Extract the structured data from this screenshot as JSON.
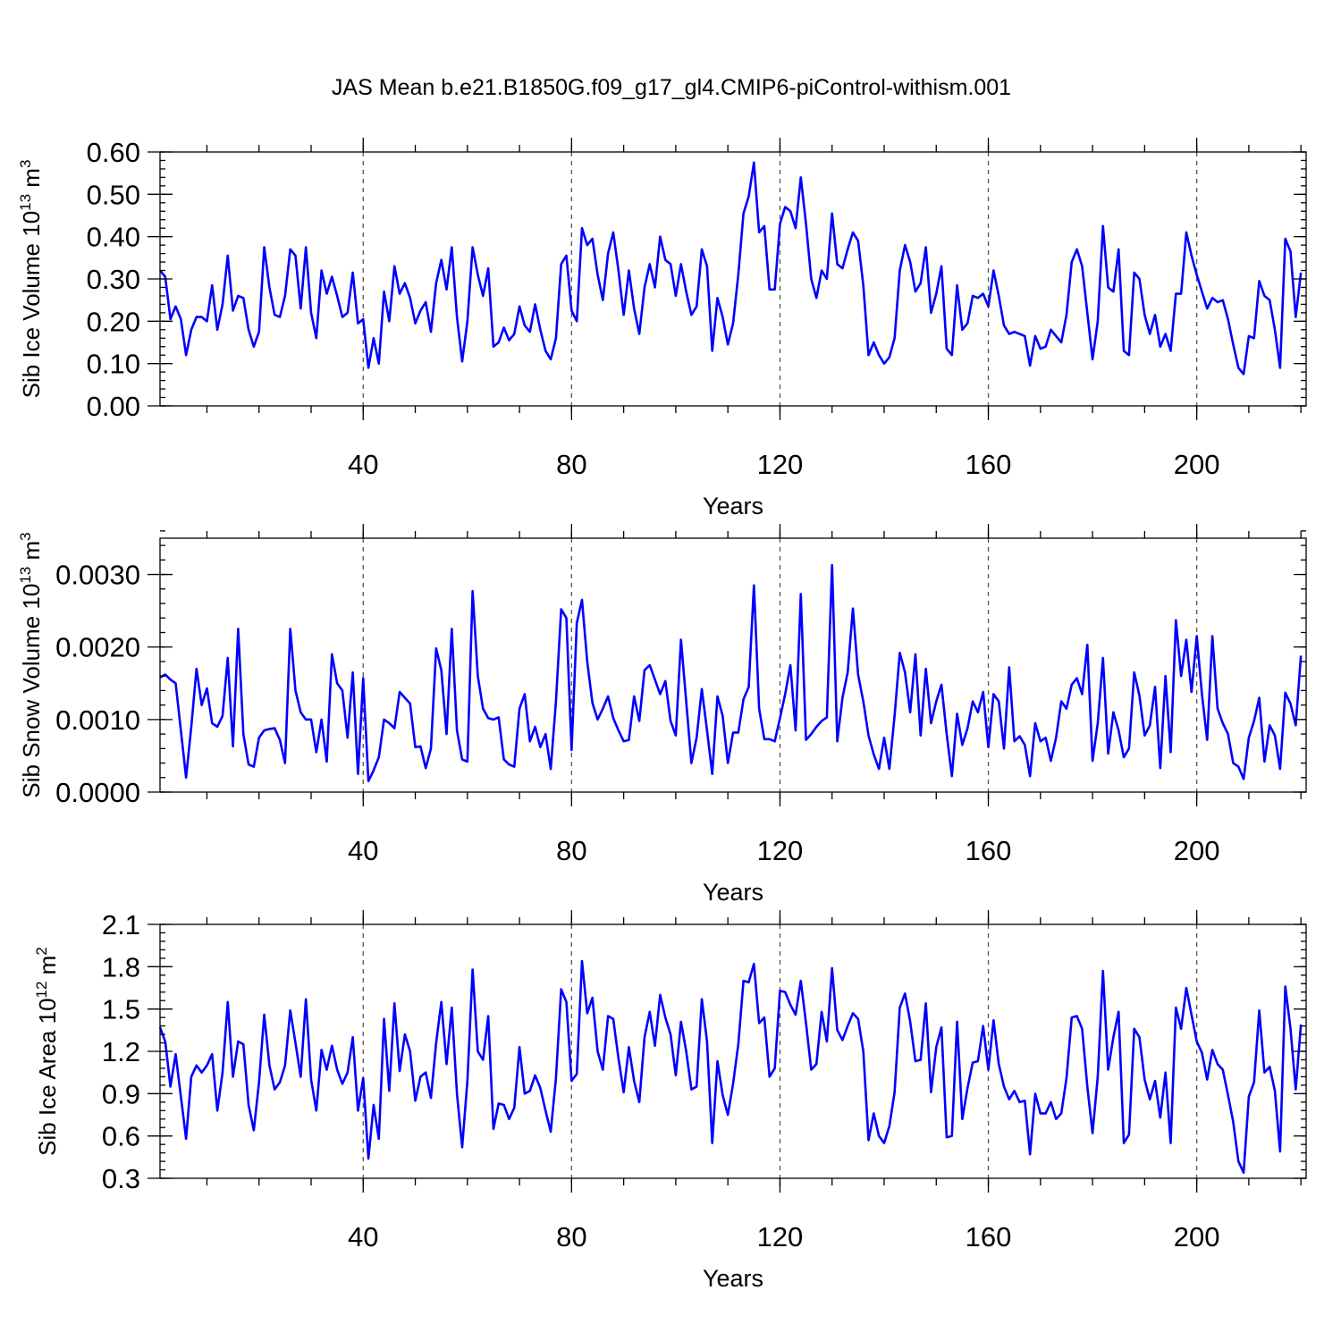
{
  "title": "JAS Mean b.e21.B1850G.f09_g17_gl4.CMIP6-piControl-withism.001",
  "colors": {
    "series": "#0000ff",
    "refline": "#555555",
    "axis": "#000000"
  },
  "chart_data": [
    {
      "type": "line",
      "ylabel_base": "Sib Ice Volume 10",
      "ylabel_exp": "13",
      "ylabel_unit": " m",
      "ylabel_unit_exp": "3",
      "xlabel": "Years",
      "xlim": [
        1,
        221
      ],
      "ylim": [
        0.0,
        0.6
      ],
      "xticks": [
        40,
        80,
        120,
        160,
        200
      ],
      "xtick_labels": [
        "40",
        "80",
        "120",
        "160",
        "200"
      ],
      "yticks": [
        0.0,
        0.1,
        0.2,
        0.3,
        0.4,
        0.5,
        0.6
      ],
      "ytick_labels": [
        "0.00",
        "0.10",
        "0.20",
        "0.30",
        "0.40",
        "0.50",
        "0.60"
      ],
      "yminor_step": 0.02,
      "reference_x": [
        40,
        80,
        120,
        160,
        200
      ],
      "x_start": 1,
      "values": [
        0.32,
        0.305,
        0.205,
        0.235,
        0.205,
        0.12,
        0.18,
        0.21,
        0.21,
        0.2,
        0.285,
        0.18,
        0.24,
        0.355,
        0.225,
        0.26,
        0.255,
        0.18,
        0.14,
        0.175,
        0.375,
        0.28,
        0.215,
        0.21,
        0.26,
        0.37,
        0.355,
        0.23,
        0.375,
        0.22,
        0.16,
        0.32,
        0.265,
        0.305,
        0.26,
        0.21,
        0.22,
        0.315,
        0.195,
        0.205,
        0.09,
        0.16,
        0.1,
        0.27,
        0.2,
        0.33,
        0.265,
        0.29,
        0.255,
        0.195,
        0.225,
        0.245,
        0.175,
        0.29,
        0.345,
        0.275,
        0.375,
        0.21,
        0.105,
        0.2,
        0.375,
        0.31,
        0.26,
        0.325,
        0.14,
        0.15,
        0.185,
        0.155,
        0.17,
        0.235,
        0.19,
        0.175,
        0.24,
        0.18,
        0.13,
        0.11,
        0.16,
        0.335,
        0.355,
        0.225,
        0.2,
        0.42,
        0.38,
        0.395,
        0.31,
        0.25,
        0.36,
        0.41,
        0.32,
        0.215,
        0.32,
        0.23,
        0.17,
        0.28,
        0.335,
        0.28,
        0.4,
        0.345,
        0.335,
        0.26,
        0.335,
        0.27,
        0.215,
        0.235,
        0.37,
        0.33,
        0.13,
        0.255,
        0.21,
        0.145,
        0.195,
        0.31,
        0.455,
        0.495,
        0.575,
        0.41,
        0.425,
        0.275,
        0.275,
        0.43,
        0.47,
        0.46,
        0.42,
        0.54,
        0.43,
        0.3,
        0.255,
        0.32,
        0.3,
        0.455,
        0.335,
        0.325,
        0.37,
        0.41,
        0.39,
        0.285,
        0.12,
        0.15,
        0.12,
        0.1,
        0.115,
        0.16,
        0.32,
        0.38,
        0.34,
        0.27,
        0.29,
        0.375,
        0.22,
        0.265,
        0.33,
        0.135,
        0.12,
        0.285,
        0.18,
        0.195,
        0.26,
        0.255,
        0.265,
        0.235,
        0.32,
        0.26,
        0.19,
        0.17,
        0.175,
        0.17,
        0.165,
        0.095,
        0.165,
        0.135,
        0.14,
        0.18,
        0.165,
        0.15,
        0.215,
        0.34,
        0.37,
        0.33,
        0.22,
        0.11,
        0.2,
        0.425,
        0.28,
        0.27,
        0.37,
        0.13,
        0.12,
        0.315,
        0.3,
        0.215,
        0.17,
        0.215,
        0.14,
        0.17,
        0.13,
        0.265,
        0.265,
        0.41,
        0.355,
        0.31,
        0.27,
        0.23,
        0.255,
        0.245,
        0.25,
        0.205,
        0.145,
        0.09,
        0.075,
        0.165,
        0.16,
        0.295,
        0.26,
        0.25,
        0.18,
        0.09,
        0.395,
        0.365,
        0.21,
        0.315
      ]
    },
    {
      "type": "line",
      "ylabel_base": "Sib Snow Volume 10",
      "ylabel_exp": "13",
      "ylabel_unit": " m",
      "ylabel_unit_exp": "3",
      "xlabel": "Years",
      "xlim": [
        1,
        221
      ],
      "ylim": [
        0.0,
        0.0035
      ],
      "xticks": [
        40,
        80,
        120,
        160,
        200
      ],
      "xtick_labels": [
        "40",
        "80",
        "120",
        "160",
        "200"
      ],
      "yticks": [
        0.0,
        0.001,
        0.002,
        0.003
      ],
      "ytick_labels": [
        "0.0000",
        "0.0010",
        "0.0020",
        "0.0030"
      ],
      "yminor_step": 0.0002,
      "reference_x": [
        40,
        80,
        120,
        160,
        200
      ],
      "x_start": 1,
      "values": [
        0.00158,
        0.00162,
        0.00155,
        0.0015,
        0.00085,
        0.0002,
        0.0009,
        0.0017,
        0.0012,
        0.00143,
        0.00095,
        0.0009,
        0.00105,
        0.00185,
        0.00063,
        0.00225,
        0.0008,
        0.00038,
        0.00035,
        0.00075,
        0.00085,
        0.00087,
        0.00088,
        0.00072,
        0.0004,
        0.00225,
        0.0014,
        0.0011,
        0.001,
        0.001,
        0.00055,
        0.001,
        0.00042,
        0.0019,
        0.0015,
        0.0014,
        0.00075,
        0.00165,
        0.00025,
        0.00157,
        0.00015,
        0.0003,
        0.00048,
        0.001,
        0.00095,
        0.00088,
        0.00138,
        0.0013,
        0.00122,
        0.00062,
        0.00063,
        0.00033,
        0.0006,
        0.00198,
        0.00168,
        0.0008,
        0.00225,
        0.00085,
        0.00045,
        0.00042,
        0.00277,
        0.0016,
        0.00115,
        0.00102,
        0.001,
        0.00103,
        0.00045,
        0.00038,
        0.00035,
        0.00115,
        0.00135,
        0.0007,
        0.0009,
        0.00062,
        0.0008,
        0.00032,
        0.00125,
        0.00252,
        0.0024,
        0.00058,
        0.00233,
        0.00265,
        0.0018,
        0.00123,
        0.001,
        0.00115,
        0.00132,
        0.00102,
        0.00085,
        0.0007,
        0.00072,
        0.00132,
        0.00098,
        0.00168,
        0.00175,
        0.00155,
        0.00135,
        0.00153,
        0.00098,
        0.00078,
        0.0021,
        0.00125,
        0.0004,
        0.00075,
        0.00142,
        0.00085,
        0.00025,
        0.00132,
        0.00105,
        0.0004,
        0.00082,
        0.00082,
        0.00128,
        0.00145,
        0.00285,
        0.00115,
        0.00073,
        0.00073,
        0.0007,
        0.00102,
        0.00135,
        0.00175,
        0.00085,
        0.00273,
        0.00072,
        0.0008,
        0.0009,
        0.00098,
        0.00103,
        0.00313,
        0.0007,
        0.0013,
        0.00165,
        0.00253,
        0.00162,
        0.00125,
        0.00078,
        0.00052,
        0.00032,
        0.00075,
        0.00032,
        0.00105,
        0.00192,
        0.00165,
        0.0011,
        0.0019,
        0.00078,
        0.0017,
        0.00095,
        0.00125,
        0.00148,
        0.0008,
        0.00022,
        0.00108,
        0.00065,
        0.00088,
        0.00125,
        0.0011,
        0.00138,
        0.00062,
        0.00135,
        0.00125,
        0.0006,
        0.00172,
        0.0007,
        0.00077,
        0.00065,
        0.00022,
        0.00095,
        0.0007,
        0.00075,
        0.00043,
        0.00075,
        0.00125,
        0.00115,
        0.00148,
        0.00157,
        0.00135,
        0.00203,
        0.00043,
        0.00095,
        0.00185,
        0.00053,
        0.0011,
        0.00085,
        0.00048,
        0.0006,
        0.00165,
        0.00133,
        0.00078,
        0.00092,
        0.00145,
        0.00033,
        0.0016,
        0.00055,
        0.00237,
        0.0016,
        0.0021,
        0.00138,
        0.00215,
        0.00135,
        0.00072,
        0.00215,
        0.00115,
        0.00095,
        0.0008,
        0.0004,
        0.00035,
        0.00018,
        0.00075,
        0.00098,
        0.0013,
        0.00042,
        0.00092,
        0.00078,
        0.00032,
        0.00137,
        0.00122,
        0.00092,
        0.00188
      ]
    },
    {
      "type": "line",
      "ylabel_base": "Sib Ice Area 10",
      "ylabel_exp": "12",
      "ylabel_unit": " m",
      "ylabel_unit_exp": "2",
      "xlabel": "Years",
      "xlim": [
        1,
        221
      ],
      "ylim": [
        0.3,
        2.1
      ],
      "xticks": [
        40,
        80,
        120,
        160,
        200
      ],
      "xtick_labels": [
        "40",
        "80",
        "120",
        "160",
        "200"
      ],
      "yticks": [
        0.3,
        0.6,
        0.9,
        1.2,
        1.5,
        1.8,
        2.1
      ],
      "ytick_labels": [
        "0.3",
        "0.6",
        "0.9",
        "1.2",
        "1.5",
        "1.8",
        "2.1"
      ],
      "yminor_step": 0.06,
      "reference_x": [
        40,
        80,
        120,
        160,
        200
      ],
      "x_start": 1,
      "values": [
        1.37,
        1.27,
        0.95,
        1.18,
        0.88,
        0.58,
        1.02,
        1.1,
        1.05,
        1.1,
        1.18,
        0.78,
        1.05,
        1.55,
        1.02,
        1.27,
        1.25,
        0.82,
        0.64,
        0.98,
        1.46,
        1.1,
        0.93,
        0.98,
        1.1,
        1.49,
        1.26,
        1.02,
        1.57,
        1.0,
        0.78,
        1.21,
        1.07,
        1.24,
        1.07,
        0.97,
        1.05,
        1.3,
        0.78,
        1.01,
        0.44,
        0.82,
        0.58,
        1.43,
        0.92,
        1.54,
        1.06,
        1.32,
        1.2,
        0.85,
        1.02,
        1.05,
        0.87,
        1.26,
        1.55,
        1.11,
        1.51,
        0.9,
        0.52,
        0.99,
        1.78,
        1.2,
        1.14,
        1.45,
        0.65,
        0.83,
        0.82,
        0.72,
        0.8,
        1.23,
        0.9,
        0.92,
        1.03,
        0.94,
        0.78,
        0.63,
        1.01,
        1.64,
        1.55,
        0.99,
        1.04,
        1.84,
        1.47,
        1.58,
        1.2,
        1.07,
        1.45,
        1.43,
        1.15,
        0.91,
        1.23,
        0.99,
        0.84,
        1.3,
        1.48,
        1.24,
        1.6,
        1.44,
        1.32,
        1.03,
        1.41,
        1.2,
        0.93,
        0.95,
        1.57,
        1.27,
        0.55,
        1.13,
        0.89,
        0.75,
        0.97,
        1.25,
        1.7,
        1.69,
        1.82,
        1.4,
        1.44,
        1.02,
        1.08,
        1.63,
        1.62,
        1.53,
        1.46,
        1.7,
        1.4,
        1.07,
        1.11,
        1.48,
        1.27,
        1.79,
        1.35,
        1.28,
        1.38,
        1.47,
        1.43,
        1.2,
        0.57,
        0.76,
        0.6,
        0.55,
        0.67,
        0.91,
        1.51,
        1.61,
        1.41,
        1.13,
        1.14,
        1.54,
        0.91,
        1.23,
        1.37,
        0.59,
        0.6,
        1.41,
        0.72,
        0.94,
        1.12,
        1.13,
        1.38,
        1.07,
        1.42,
        1.11,
        0.95,
        0.86,
        0.92,
        0.84,
        0.85,
        0.47,
        0.9,
        0.76,
        0.76,
        0.84,
        0.72,
        0.76,
        1.01,
        1.44,
        1.45,
        1.36,
        0.95,
        0.62,
        1.02,
        1.77,
        1.07,
        1.3,
        1.48,
        0.55,
        0.61,
        1.36,
        1.3,
        1.0,
        0.86,
        0.99,
        0.73,
        1.05,
        0.55,
        1.51,
        1.36,
        1.65,
        1.46,
        1.27,
        1.19,
        1.0,
        1.21,
        1.11,
        1.07,
        0.89,
        0.7,
        0.42,
        0.34,
        0.88,
        0.98,
        1.49,
        1.05,
        1.09,
        0.92,
        0.49,
        1.66,
        1.36,
        0.93,
        1.39
      ]
    }
  ]
}
